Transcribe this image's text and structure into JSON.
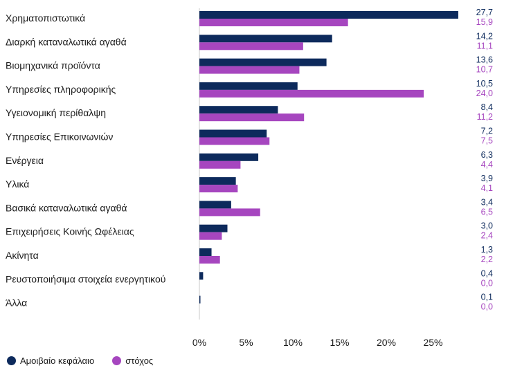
{
  "chart_data": {
    "type": "bar",
    "orientation": "horizontal",
    "categories": [
      "Χρηματοπιστωτικά",
      "Διαρκή καταναλωτικά αγαθά",
      "Βιομηχανικά προϊόντα",
      "Υπηρεσίες πληροφορικής",
      "Υγειονομική περίθαλψη",
      "Υπηρεσίες Επικοινωνιών",
      "Ενέργεια",
      "Υλικά",
      "Βασικά καταναλωτικά αγαθά",
      "Επιχειρήσεις Κοινής Ωφέλειας",
      "Ακίνητα",
      "Ρευστοποιήσιμα στοιχεία ενεργητικού",
      "Άλλα"
    ],
    "series": [
      {
        "name": "Αμοιβαίο κεφάλαιο",
        "color": "#0d2a5c",
        "values": [
          27.7,
          14.2,
          13.6,
          10.5,
          8.4,
          7.2,
          6.3,
          3.9,
          3.4,
          3.0,
          1.3,
          0.4,
          0.1
        ],
        "labels": [
          "27,7",
          "14,2",
          "13,6",
          "10,5",
          "8,4",
          "7,2",
          "6,3",
          "3,9",
          "3,4",
          "3,0",
          "1,3",
          "0,4",
          "0,1"
        ]
      },
      {
        "name": "στόχος",
        "color": "#a646bf",
        "values": [
          15.9,
          11.1,
          10.7,
          24.0,
          11.2,
          7.5,
          4.4,
          4.1,
          6.5,
          2.4,
          2.2,
          0.0,
          0.0
        ],
        "labels": [
          "15,9",
          "11,1",
          "10,7",
          "24,0",
          "11,2",
          "7,5",
          "4,4",
          "4,1",
          "6,5",
          "2,4",
          "2,2",
          "0,0",
          "0,0"
        ]
      }
    ],
    "xlim": [
      0,
      30
    ],
    "xticks": [
      0,
      5,
      10,
      15,
      20,
      25
    ],
    "xtick_labels": [
      "0%",
      "5%",
      "10%",
      "15%",
      "20%",
      "25%"
    ],
    "grid": false,
    "legend_position": "bottom-left"
  }
}
